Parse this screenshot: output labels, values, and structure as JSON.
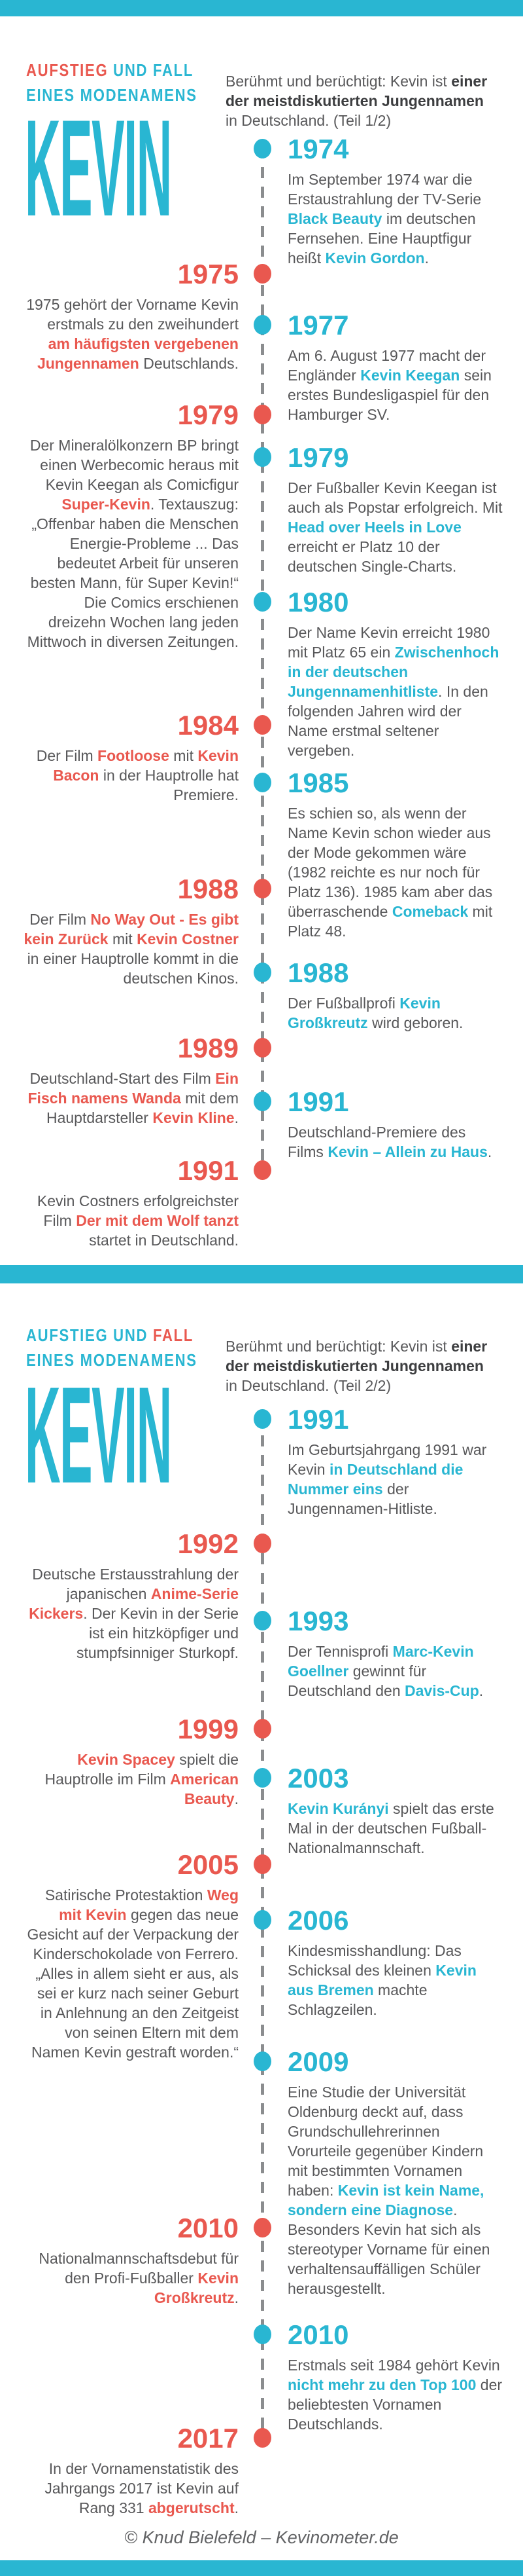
{
  "colors": {
    "cyan": "#29b6d2",
    "red": "#e9584f"
  },
  "footer": {
    "credit": "© Knud Bielefeld – Kevinometer.de"
  },
  "part1": {
    "title1": [
      {
        "t": "AUFSTIEG",
        "c": "red"
      },
      {
        "t": " UND FALL",
        "c": "cyan"
      }
    ],
    "title2": [
      {
        "t": "EINES MODENAMENS",
        "c": "cyan"
      }
    ],
    "intro": [
      {
        "t": "Berühmt und berüchtigt: Kevin ist "
      },
      {
        "t": "einer der meistdiskutierten Jungennamen",
        "s": "bold"
      },
      {
        "t": " in Deutschland. (Teil 1/2)"
      }
    ],
    "big_name": "KEVIN",
    "entries": [
      {
        "year": "1974",
        "side": "right",
        "color": "cyan",
        "desc": [
          {
            "t": "Im September 1974 war die Erstaustrahlung der TV-Serie "
          },
          {
            "t": "Black Beauty",
            "s": "accent"
          },
          {
            "t": " im deutschen Fernsehen. Eine Hauptfigur heißt "
          },
          {
            "t": "Kevin Gordon",
            "s": "accent"
          },
          {
            "t": "."
          }
        ]
      },
      {
        "year": "1975",
        "side": "left",
        "color": "red",
        "desc": [
          {
            "t": "1975 gehört der Vorname Kevin erstmals zu den zweihundert "
          },
          {
            "t": "am häufigsten vergebenen Jungennamen",
            "s": "accent"
          },
          {
            "t": " Deutschlands."
          }
        ]
      },
      {
        "year": "1977",
        "side": "right",
        "color": "cyan",
        "desc": [
          {
            "t": "Am 6. August 1977 macht der Engländer "
          },
          {
            "t": "Kevin Keegan",
            "s": "accent"
          },
          {
            "t": " sein erstes Bundesligaspiel für den Hamburger SV."
          }
        ]
      },
      {
        "year": "1979",
        "side": "left",
        "color": "red",
        "desc": [
          {
            "t": "Der Mineralölkonzern BP bringt einen Werbecomic heraus mit Kevin Keegan als Comicfigur "
          },
          {
            "t": "Super-Kevin",
            "s": "accent"
          },
          {
            "t": ". Textauszug: „Offenbar haben die Menschen Energie-Probleme ... Das bedeutet Arbeit für unseren besten Mann, für Super Kevin!“ Die Comics erschienen dreizehn Wochen lang jeden Mittwoch in diversen Zeitungen."
          }
        ]
      },
      {
        "year": "1979",
        "side": "right",
        "color": "cyan",
        "desc": [
          {
            "t": "Der Fußballer Kevin Keegan ist auch als Popstar erfolgreich. Mit "
          },
          {
            "t": "Head over Heels in Love",
            "s": "accent"
          },
          {
            "t": " erreicht er Platz 10 der deutschen Single-Charts."
          }
        ]
      },
      {
        "year": "1980",
        "side": "right",
        "color": "cyan",
        "desc": [
          {
            "t": "Der Name Kevin erreicht 1980 mit Platz 65 ein "
          },
          {
            "t": "Zwischenhoch in der deutschen Jungennamenhitliste",
            "s": "accent"
          },
          {
            "t": ". In den folgenden Jahren wird der Name erstmal seltener vergeben."
          }
        ]
      },
      {
        "year": "1984",
        "side": "left",
        "color": "red",
        "desc": [
          {
            "t": "Der Film "
          },
          {
            "t": "Footloose",
            "s": "accent"
          },
          {
            "t": " mit "
          },
          {
            "t": "Kevin Bacon",
            "s": "accent"
          },
          {
            "t": " in der Hauptrolle hat Premiere."
          }
        ]
      },
      {
        "year": "1985",
        "side": "right",
        "color": "cyan",
        "desc": [
          {
            "t": "Es schien so, als wenn der Name Kevin schon wieder aus der Mode gekommen wäre (1982 reichte es nur noch für Platz 136). 1985 kam aber das überraschende "
          },
          {
            "t": "Comeback",
            "s": "accent"
          },
          {
            "t": " mit Platz 48."
          }
        ]
      },
      {
        "year": "1988",
        "side": "left",
        "color": "red",
        "desc": [
          {
            "t": "Der Film "
          },
          {
            "t": "No Way Out - Es gibt kein Zurück",
            "s": "accent"
          },
          {
            "t": " mit "
          },
          {
            "t": "Kevin Costner",
            "s": "accent"
          },
          {
            "t": " in einer Hauptrolle kommt in die deutschen Kinos."
          }
        ]
      },
      {
        "year": "1988",
        "side": "right",
        "color": "cyan",
        "desc": [
          {
            "t": "Der Fußballprofi "
          },
          {
            "t": "Kevin Großkreutz",
            "s": "accent"
          },
          {
            "t": " wird geboren."
          }
        ]
      },
      {
        "year": "1989",
        "side": "left",
        "color": "red",
        "desc": [
          {
            "t": "Deutschland-Start des Film "
          },
          {
            "t": "Ein Fisch namens Wanda",
            "s": "accent"
          },
          {
            "t": " mit dem Hauptdarsteller "
          },
          {
            "t": "Kevin Kline",
            "s": "accent"
          },
          {
            "t": "."
          }
        ]
      },
      {
        "year": "1991",
        "side": "right",
        "color": "cyan",
        "desc": [
          {
            "t": "Deutschland-Premiere des Films "
          },
          {
            "t": "Kevin – Allein zu Haus",
            "s": "accent"
          },
          {
            "t": "."
          }
        ]
      },
      {
        "year": "1991",
        "side": "left",
        "color": "red",
        "desc": [
          {
            "t": "Kevin Costners erfolgreichster Film "
          },
          {
            "t": "Der mit dem Wolf tanzt",
            "s": "accent"
          },
          {
            "t": " startet in Deutschland."
          }
        ]
      }
    ]
  },
  "part2": {
    "title1": [
      {
        "t": "AUFSTIEG UND ",
        "c": "cyan"
      },
      {
        "t": "FALL",
        "c": "red"
      }
    ],
    "title2": [
      {
        "t": "EINES MODENAMENS",
        "c": "cyan"
      }
    ],
    "intro": [
      {
        "t": "Berühmt und berüchtigt: Kevin ist "
      },
      {
        "t": "einer der meistdiskutierten Jungennamen",
        "s": "bold"
      },
      {
        "t": " in Deutschland. (Teil 2/2)"
      }
    ],
    "big_name": "KEVIN",
    "entries": [
      {
        "year": "1991",
        "side": "right",
        "color": "cyan",
        "desc": [
          {
            "t": "Im Geburtsjahrgang 1991 war Kevin "
          },
          {
            "t": "in Deutschland die Nummer eins",
            "s": "accent"
          },
          {
            "t": " der Jungennamen-Hitliste."
          }
        ]
      },
      {
        "year": "1992",
        "side": "left",
        "color": "red",
        "desc": [
          {
            "t": "Deutsche Erstausstrahlung der japanischen "
          },
          {
            "t": "Anime-Serie Kickers",
            "s": "accent"
          },
          {
            "t": ". Der Kevin in der Serie ist ein hitzköpfiger und stumpfsinniger Sturkopf."
          }
        ]
      },
      {
        "year": "1993",
        "side": "right",
        "color": "cyan",
        "desc": [
          {
            "t": "Der Tennisprofi "
          },
          {
            "t": "Marc-Kevin Goellner",
            "s": "accent"
          },
          {
            "t": " gewinnt für Deutschland den "
          },
          {
            "t": "Davis-Cup",
            "s": "accent"
          },
          {
            "t": "."
          }
        ]
      },
      {
        "year": "1999",
        "side": "left",
        "color": "red",
        "desc": [
          {
            "t": "Kevin Spacey",
            "s": "accent"
          },
          {
            "t": " spielt die Hauptrolle im Film "
          },
          {
            "t": "American Beauty",
            "s": "accent"
          },
          {
            "t": "."
          }
        ]
      },
      {
        "year": "2003",
        "side": "right",
        "color": "cyan",
        "desc": [
          {
            "t": "Kevin Kurányi",
            "s": "accent"
          },
          {
            "t": " spielt das erste Mal in der deutschen Fußball-Nationalmannschaft."
          }
        ]
      },
      {
        "year": "2005",
        "side": "left",
        "color": "red",
        "desc": [
          {
            "t": "Satirische Protestaktion "
          },
          {
            "t": "Weg mit Kevin",
            "s": "accent"
          },
          {
            "t": " gegen das neue Gesicht auf der Verpackung der Kinderschokolade von Ferrero. „Alles in allem sieht er aus, als sei er kurz nach seiner Geburt in Anlehnung an den Zeitgeist von seinen Eltern mit dem Namen Kevin gestraft worden.“"
          }
        ]
      },
      {
        "year": "2006",
        "side": "right",
        "color": "cyan",
        "desc": [
          {
            "t": "Kindesmisshandlung: Das Schicksal des kleinen "
          },
          {
            "t": "Kevin aus Bremen",
            "s": "accent"
          },
          {
            "t": " machte Schlagzeilen."
          }
        ]
      },
      {
        "year": "2009",
        "side": "right",
        "color": "cyan",
        "desc": [
          {
            "t": "Eine Studie der Universität Oldenburg deckt auf, dass Grundschullehrerinnen Vorurteile gegenüber Kindern mit bestimmten Vornamen haben: "
          },
          {
            "t": "Kevin ist kein Name, sondern eine Diagnose",
            "s": "accent"
          },
          {
            "t": ". Besonders Kevin hat sich als stereotyper Vorname für einen verhaltensauffälligen Schüler herausgestellt."
          }
        ]
      },
      {
        "year": "2010",
        "side": "left",
        "color": "red",
        "desc": [
          {
            "t": "Nationalmannschaftsdebut für den Profi-Fußballer "
          },
          {
            "t": "Kevin Großkreutz",
            "s": "accent"
          },
          {
            "t": "."
          }
        ]
      },
      {
        "year": "2010",
        "side": "right",
        "color": "cyan",
        "desc": [
          {
            "t": "Erstmals seit 1984 gehört Kevin "
          },
          {
            "t": "nicht mehr zu den Top 100",
            "s": "accent"
          },
          {
            "t": " der beliebtesten Vornamen Deutschlands."
          }
        ]
      },
      {
        "year": "2017",
        "side": "left",
        "color": "red",
        "desc": [
          {
            "t": "In der Vornamenstatistik des Jahrgangs 2017 ist Kevin auf Rang 331 "
          },
          {
            "t": "abgerutscht",
            "s": "accent"
          },
          {
            "t": "."
          }
        ]
      }
    ]
  }
}
